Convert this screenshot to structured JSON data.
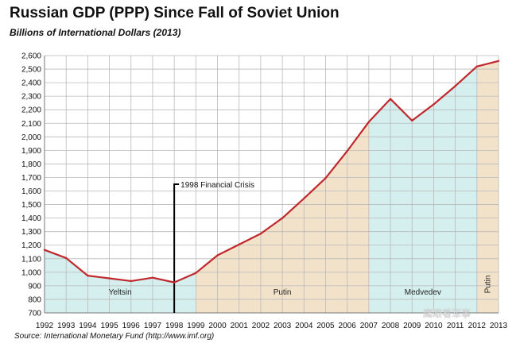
{
  "chart_data": {
    "type": "line",
    "title": "Russian GDP (PPP) Since Fall of Soviet Union",
    "subtitle": "Billions of International Dollars (2013)",
    "source": "Source: International Monetary Fund (http://www.imf.org)",
    "xlabel": "",
    "ylabel": "",
    "x": [
      "1992",
      "1993",
      "1994",
      "1995",
      "1996",
      "1997",
      "1998",
      "1999",
      "2000",
      "2001",
      "2002",
      "2003",
      "2004",
      "2005",
      "2006",
      "2007",
      "2008",
      "2009",
      "2010",
      "2011",
      "2012",
      "2013"
    ],
    "series": [
      {
        "values": [
          1165,
          1105,
          975,
          955,
          935,
          960,
          925,
          995,
          1125,
          1205,
          1285,
          1400,
          1545,
          1695,
          1895,
          2110,
          2280,
          2120,
          2240,
          2375,
          2520,
          2560
        ]
      }
    ],
    "ylim": [
      700,
      2600
    ],
    "yticks": [
      "700",
      "800",
      "900",
      "1,000",
      "1,100",
      "1,200",
      "1,300",
      "1,400",
      "1,500",
      "1,600",
      "1,700",
      "1,800",
      "1,900",
      "2,000",
      "2,100",
      "2,200",
      "2,300",
      "2,400",
      "2,500",
      "2,600"
    ],
    "grid": true,
    "line_color": "#c0282d",
    "eras": [
      {
        "label": "Yeltsin",
        "start": "1992",
        "end": "1999",
        "color": "#d5efef"
      },
      {
        "label": "Putin",
        "start": "1999",
        "end": "2007",
        "color": "#f2e2ca"
      },
      {
        "label": "Medvedev",
        "start": "2007",
        "end": "2012",
        "color": "#d5efef"
      },
      {
        "label": "Putin",
        "start": "2012",
        "end": "2013",
        "color": "#f2e2ca",
        "vertical": true
      }
    ],
    "annotation": {
      "label": "1998 Financial Crisis",
      "x": "1998",
      "y": 1650
    }
  },
  "watermark": "鹰眼看军事"
}
